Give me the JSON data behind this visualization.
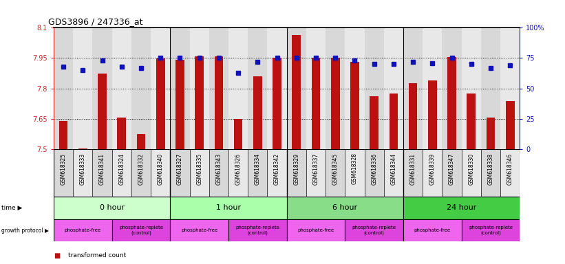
{
  "title": "GDS3896 / 247336_at",
  "samples": [
    "GSM618325",
    "GSM618333",
    "GSM618341",
    "GSM618324",
    "GSM618332",
    "GSM618340",
    "GSM618327",
    "GSM618335",
    "GSM618343",
    "GSM618326",
    "GSM618334",
    "GSM618342",
    "GSM618329",
    "GSM618337",
    "GSM618345",
    "GSM618328",
    "GSM618336",
    "GSM618344",
    "GSM618331",
    "GSM618339",
    "GSM618347",
    "GSM618330",
    "GSM618338",
    "GSM618346"
  ],
  "bar_values": [
    7.638,
    7.502,
    7.872,
    7.655,
    7.575,
    7.948,
    7.943,
    7.96,
    7.96,
    7.65,
    7.86,
    7.952,
    8.065,
    7.952,
    7.952,
    7.93,
    7.762,
    7.775,
    7.825,
    7.84,
    7.955,
    7.775,
    7.655,
    7.738
  ],
  "percentile_values": [
    68,
    65,
    73,
    68,
    67,
    75,
    75,
    75,
    75,
    63,
    72,
    75,
    75,
    75,
    75,
    73,
    70,
    70,
    72,
    71,
    75,
    70,
    67,
    69
  ],
  "ymin": 7.5,
  "ymax": 8.1,
  "yticks_left": [
    7.5,
    7.65,
    7.8,
    7.95,
    8.1
  ],
  "yticks_right": [
    0,
    25,
    50,
    75,
    100
  ],
  "bar_color": "#bb1111",
  "dot_color": "#1111bb",
  "time_groups": [
    {
      "label": "0 hour",
      "start": 0,
      "end": 6,
      "color": "#ccffcc"
    },
    {
      "label": "1 hour",
      "start": 6,
      "end": 12,
      "color": "#aaffaa"
    },
    {
      "label": "6 hour",
      "start": 12,
      "end": 18,
      "color": "#88dd88"
    },
    {
      "label": "24 hour",
      "start": 18,
      "end": 24,
      "color": "#44cc44"
    }
  ],
  "protocol_groups": [
    {
      "label": "phosphate-free",
      "start": 0,
      "end": 3,
      "color": "#ee66ee"
    },
    {
      "label": "phosphate-replete\n(control)",
      "start": 3,
      "end": 6,
      "color": "#dd44dd"
    },
    {
      "label": "phosphate-free",
      "start": 6,
      "end": 9,
      "color": "#ee66ee"
    },
    {
      "label": "phosphate-replete\n(control)",
      "start": 9,
      "end": 12,
      "color": "#dd44dd"
    },
    {
      "label": "phosphate-free",
      "start": 12,
      "end": 15,
      "color": "#ee66ee"
    },
    {
      "label": "phosphate-replete\n(control)",
      "start": 15,
      "end": 18,
      "color": "#dd44dd"
    },
    {
      "label": "phosphate-free",
      "start": 18,
      "end": 21,
      "color": "#ee66ee"
    },
    {
      "label": "phosphate-replete\n(control)",
      "start": 21,
      "end": 24,
      "color": "#dd44dd"
    }
  ],
  "left_axis_color": "#cc2222",
  "right_axis_color": "#1111bb",
  "col_bg_odd": "#d8d8d8",
  "col_bg_even": "#e8e8e8",
  "chart_bg": "#ffffff"
}
